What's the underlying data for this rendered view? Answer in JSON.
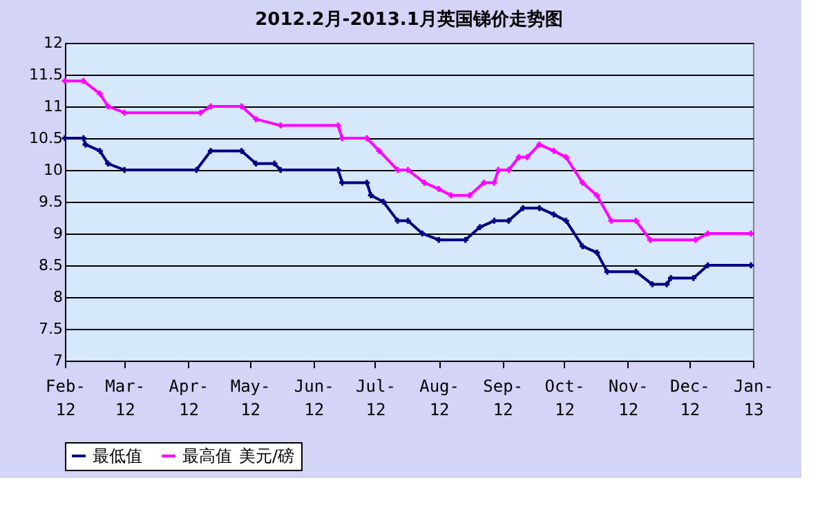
{
  "chart_data": {
    "type": "line",
    "title": "2012.2月-2013.1月英国锑价走势图",
    "legend_title": "美元/磅",
    "series": [
      {
        "name": "最低值",
        "color": "#000080",
        "x": [
          "2012-02-01",
          "2012-02-10",
          "2012-02-11",
          "2012-02-18",
          "2012-02-22",
          "2012-03-01",
          "2012-04-05",
          "2012-04-12",
          "2012-04-27",
          "2012-05-04",
          "2012-05-13",
          "2012-05-16",
          "2012-06-13",
          "2012-06-15",
          "2012-06-27",
          "2012-06-29",
          "2012-07-05",
          "2012-07-12",
          "2012-07-17",
          "2012-07-24",
          "2012-08-01",
          "2012-08-14",
          "2012-08-21",
          "2012-08-28",
          "2012-09-04",
          "2012-09-11",
          "2012-09-19",
          "2012-09-26",
          "2012-10-02",
          "2012-10-10",
          "2012-10-17",
          "2012-10-22",
          "2012-11-05",
          "2012-11-13",
          "2012-11-20",
          "2012-11-22",
          "2012-12-03",
          "2012-12-10",
          "2012-12-31"
        ],
        "values": [
          10.5,
          10.5,
          10.4,
          10.3,
          10.1,
          10.0,
          10.0,
          10.3,
          10.3,
          10.1,
          10.1,
          10.0,
          10.0,
          9.8,
          9.8,
          9.6,
          9.5,
          9.2,
          9.2,
          9.0,
          8.9,
          8.9,
          9.1,
          9.2,
          9.2,
          9.4,
          9.4,
          9.3,
          9.2,
          8.8,
          8.7,
          8.4,
          8.4,
          8.2,
          8.2,
          8.3,
          8.3,
          8.5,
          8.5
        ]
      },
      {
        "name": "最高值",
        "color": "#ff00ff",
        "x": [
          "2012-02-01",
          "2012-02-10",
          "2012-02-18",
          "2012-02-22",
          "2012-03-01",
          "2012-04-07",
          "2012-04-12",
          "2012-04-27",
          "2012-05-04",
          "2012-05-16",
          "2012-06-13",
          "2012-06-15",
          "2012-06-27",
          "2012-07-03",
          "2012-07-12",
          "2012-07-17",
          "2012-07-25",
          "2012-08-01",
          "2012-08-07",
          "2012-08-16",
          "2012-08-23",
          "2012-08-28",
          "2012-08-30",
          "2012-09-04",
          "2012-09-09",
          "2012-09-13",
          "2012-09-19",
          "2012-09-26",
          "2012-10-02",
          "2012-10-10",
          "2012-10-17",
          "2012-10-24",
          "2012-11-05",
          "2012-11-12",
          "2012-12-04",
          "2012-12-10",
          "2012-12-31"
        ],
        "values": [
          11.4,
          11.4,
          11.2,
          11.0,
          10.9,
          10.9,
          11.0,
          11.0,
          10.8,
          10.7,
          10.7,
          10.5,
          10.5,
          10.3,
          10.0,
          10.0,
          9.8,
          9.7,
          9.6,
          9.6,
          9.8,
          9.8,
          10.0,
          10.0,
          10.2,
          10.2,
          10.4,
          10.3,
          10.2,
          9.8,
          9.6,
          9.2,
          9.2,
          8.9,
          8.9,
          9.0,
          9.0
        ]
      }
    ],
    "xlim": [
      "2012-02-01",
      "2013-01-01"
    ],
    "xticks": [
      {
        "value": "2012-02-01",
        "label": "Feb-12"
      },
      {
        "value": "2012-03-01",
        "label": "Mar-12"
      },
      {
        "value": "2012-04-01",
        "label": "Apr-12"
      },
      {
        "value": "2012-05-01",
        "label": "May-12"
      },
      {
        "value": "2012-06-01",
        "label": "Jun-12"
      },
      {
        "value": "2012-07-01",
        "label": "Jul-12"
      },
      {
        "value": "2012-08-01",
        "label": "Aug-12"
      },
      {
        "value": "2012-09-01",
        "label": "Sep-12"
      },
      {
        "value": "2012-10-01",
        "label": "Oct-12"
      },
      {
        "value": "2012-11-01",
        "label": "Nov-12"
      },
      {
        "value": "2012-12-01",
        "label": "Dec-12"
      },
      {
        "value": "2013-01-01",
        "label": "Jan-13"
      }
    ],
    "ylim": [
      7,
      12
    ],
    "yticks": [
      7,
      7.5,
      8,
      8.5,
      9,
      9.5,
      10,
      10.5,
      11,
      11.5,
      12
    ],
    "grid": "y",
    "legend": "bottom",
    "marker": "cross",
    "line_style": "solid"
  }
}
